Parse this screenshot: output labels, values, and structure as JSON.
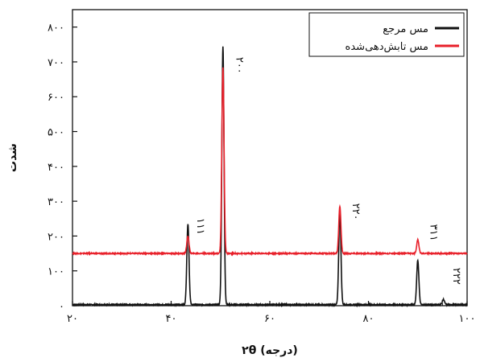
{
  "chart_data": {
    "type": "line",
    "title": "",
    "xlabel": "۲θ (درجه)",
    "ylabel": "شدت",
    "xlim": [
      20,
      100
    ],
    "ylim": [
      0,
      850
    ],
    "x_ticks": [
      20,
      40,
      60,
      80,
      100
    ],
    "x_tick_labels": [
      "۲۰",
      "۴۰",
      "۶۰",
      "۸۰",
      "۱۰۰"
    ],
    "y_ticks": [
      0,
      100,
      200,
      300,
      400,
      500,
      600,
      700,
      800
    ],
    "y_tick_labels": [
      "۰",
      "۱۰۰",
      "۲۰۰",
      "۳۰۰",
      "۴۰۰",
      "۵۰۰",
      "۶۰۰",
      "۷۰۰",
      "۸۰۰"
    ],
    "grid": false,
    "legend_position": "top-right",
    "series": [
      {
        "name": "مس مرجع",
        "color": "#111111",
        "baseline": 3,
        "peaks": [
          {
            "x": 43.4,
            "y": 235
          },
          {
            "x": 50.5,
            "y": 745
          },
          {
            "x": 74.2,
            "y": 272
          },
          {
            "x": 90.0,
            "y": 130
          },
          {
            "x": 95.2,
            "y": 18
          }
        ]
      },
      {
        "name": "مس تابش‌دهی‌شده",
        "color": "#e8202a",
        "baseline": 150,
        "peaks": [
          {
            "x": 43.4,
            "y": 200
          },
          {
            "x": 50.5,
            "y": 685
          },
          {
            "x": 74.2,
            "y": 285
          },
          {
            "x": 90.0,
            "y": 190
          }
        ]
      }
    ],
    "annotations": [
      {
        "text": "۱۱۱",
        "x": 45.3,
        "y": 228
      },
      {
        "text": "۲۰۰",
        "x": 53.2,
        "y": 690
      },
      {
        "text": "۲۲۰",
        "x": 76.8,
        "y": 270
      },
      {
        "text": "۳۱۱",
        "x": 92.6,
        "y": 210
      },
      {
        "text": "۲۲۲",
        "x": 97.2,
        "y": 85
      }
    ]
  }
}
